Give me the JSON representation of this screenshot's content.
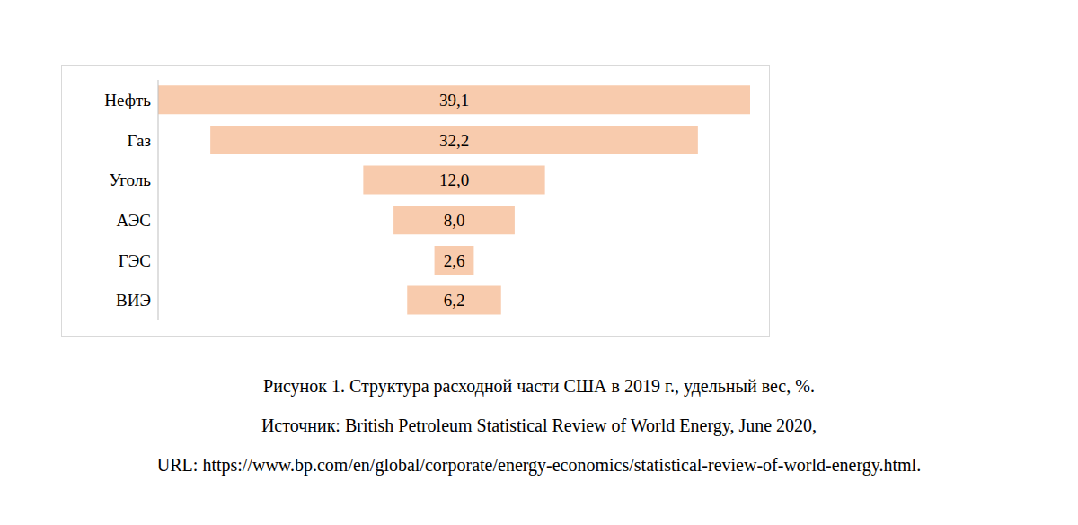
{
  "chart_data": {
    "type": "bar",
    "orientation": "horizontal",
    "title": "Рисунок 1. Структура расходной части США в 2019 г., удельный вес, %.",
    "annotations": [
      "Источник: British Petroleum Statistical Review of World Energy, June 2020,",
      "URL: https://www.bp.com/en/global/corporate/energy-economics/statistical-review-of-world-energy.html."
    ],
    "categories": [
      "Нефть",
      "Газ",
      "Уголь",
      "АЭС",
      "ГЭС",
      "ВИЭ"
    ],
    "values": [
      39.1,
      32.2,
      12.0,
      8.0,
      2.6,
      6.2
    ],
    "value_labels": [
      "39,1",
      "32,2",
      "12,0",
      "8,0",
      "2,6",
      "6,2"
    ],
    "color": "#f8cbad",
    "xlim": [
      0,
      39.1
    ],
    "data_labels": true,
    "tick_labels": "y",
    "grid": false
  }
}
